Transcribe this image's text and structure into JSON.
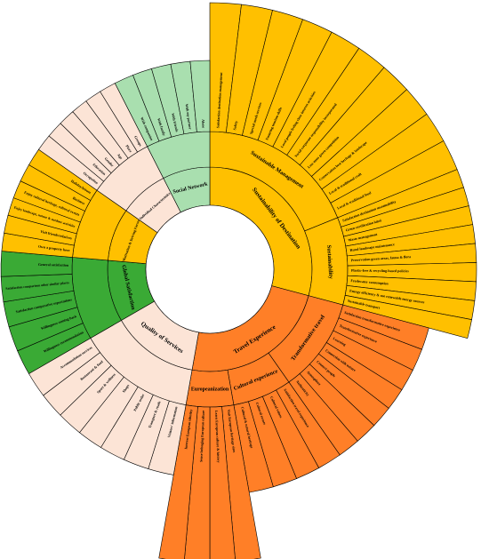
{
  "colors": {
    "sustainability": "#FFC000",
    "experience": "#FF7F27",
    "individual": "#FCE4D6",
    "motivation": "#FFC000",
    "global": "#3AAA35",
    "quality": "#FCE4D6",
    "social": "#A9DFAF"
  },
  "sectors": [
    {
      "name": "Sustainability of Destination",
      "color_key": "sustainability",
      "children": [
        {
          "name": "Sustainable Management",
          "leaves": [
            "Satisfaction destination management",
            "Safety",
            "Special needs services",
            "Ensuring tourism skills",
            "Local people feeling close interest activities",
            "Social corporate responsibility incorporated",
            "Less mass green competition",
            "Conservation best heritage & landscape",
            "Local & traditional craft",
            "Local & traditional food"
          ]
        },
        {
          "name": "Sustainability",
          "leaves": [
            "Satisfaction destination sustainability",
            "Green certification label",
            "Waste management",
            "Rural landscape maintenance",
            "Preservation green areas, fauna & flora",
            "Plastic-free & recycling-based policies",
            "Freshwater consumption",
            "Energy efficiency & use renewable energy sources",
            "Sustainable transport"
          ]
        }
      ]
    },
    {
      "name": "Travel Experience",
      "color_key": "experience",
      "children": [
        {
          "name": "Transformative travel",
          "leaves": [
            "Satisfaction transformative experience",
            "Transformative experience",
            "Learning",
            "Connection with nature",
            "Connect people",
            "Atmosphere",
            "Authenticity"
          ]
        },
        {
          "name": "Cultural experience",
          "leaves": [
            "Satisfaction travel experience",
            "Cultural values",
            "Cultural events",
            "Cultural & natural heritage"
          ]
        },
        {
          "name": "Europeanization",
          "leaves": [
            "Visit European heritage sites",
            "Learn European culture & history",
            "Sense belonging European culture",
            "Interest European identity"
          ]
        }
      ]
    },
    {
      "name": "Quality of Services",
      "color_key": "quality",
      "children": [],
      "leaves": [
        "Visitors' information",
        "Transport & roads",
        "Public order",
        "Shops",
        "Sport & wellness",
        "Restaurant & food",
        "Accommodation services"
      ]
    },
    {
      "name": "Global Satisfaction",
      "color_key": "global",
      "children": [],
      "leaves": [
        "Willingness recommendation",
        "Willingness coming back",
        "Satisfaction comparative expectations",
        "Satisfaction comparison other similar places",
        "General satisfaction"
      ]
    },
    {
      "name": "Motivation & Driving Forces",
      "color_key": "motivation",
      "children": [],
      "leaves": [
        "Own a property here",
        "Visit friends/relatives",
        "Enjoy landscape, nature & outdoor activities",
        "Enjoy cultural heritage, cultural events",
        "Business",
        "Holiday/leisure"
      ]
    },
    {
      "name": "Individual Characteristics",
      "color_key": "individual",
      "children": [],
      "leaves": [
        "Occupation",
        "Education",
        "Gender",
        "Age",
        "Place",
        "Groups"
      ]
    },
    {
      "name": "Social Network",
      "color_key": "social",
      "children": [],
      "leaves": [
        "With companion",
        "With family",
        "With friends",
        "With my partner",
        "Alone"
      ]
    }
  ]
}
